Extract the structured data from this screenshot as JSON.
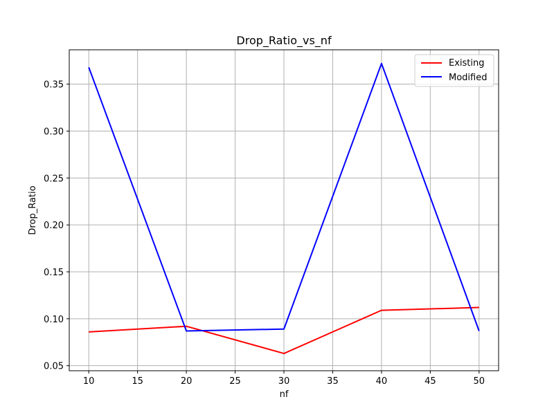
{
  "chart_data": {
    "type": "line",
    "title": "Drop_Ratio_vs_nf",
    "xlabel": "nf",
    "ylabel": "Drop_Ratio",
    "x": [
      10,
      20,
      30,
      40,
      50
    ],
    "xlim": [
      8.0,
      52.0
    ],
    "ylim": [
      0.0446,
      0.3866
    ],
    "xticks": [
      10,
      15,
      20,
      25,
      30,
      35,
      40,
      45,
      50
    ],
    "yticks": [
      0.05,
      0.1,
      0.15,
      0.2,
      0.25,
      0.3,
      0.35
    ],
    "ytick_labels": [
      "0.05",
      "0.10",
      "0.15",
      "0.20",
      "0.25",
      "0.30",
      "0.35"
    ],
    "grid": true,
    "legend_position": "top-right",
    "series": [
      {
        "name": "Existing",
        "color": "#ff0000",
        "values": [
          0.086,
          0.092,
          0.063,
          0.109,
          0.112
        ]
      },
      {
        "name": "Modified",
        "color": "#0000ff",
        "values": [
          0.368,
          0.087,
          0.089,
          0.372,
          0.087
        ]
      }
    ]
  }
}
